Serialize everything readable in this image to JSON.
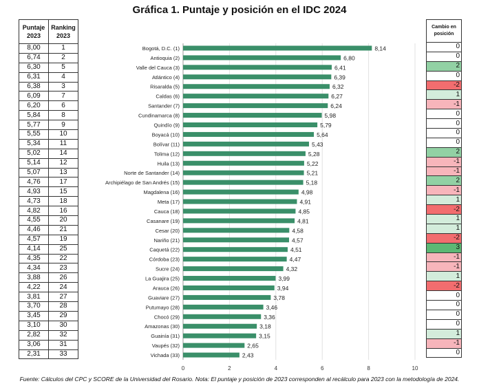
{
  "title": "Gráfica 1. Puntaje y posición en el IDC 2024",
  "left_table": {
    "headers": [
      "Puntaje 2023",
      "Ranking 2023"
    ],
    "puntaje": [
      "8,00",
      "6,74",
      "6,30",
      "6,31",
      "6,38",
      "6,09",
      "6,20",
      "5,84",
      "5,77",
      "5,55",
      "5,34",
      "5,02",
      "5,14",
      "5,07",
      "4,76",
      "4,93",
      "4,73",
      "4,82",
      "4,55",
      "4,46",
      "4,57",
      "4,14",
      "4,35",
      "4,34",
      "3,88",
      "4,22",
      "3,81",
      "3,70",
      "3,45",
      "3,10",
      "2,82",
      "3,06",
      "2,31"
    ],
    "ranking": [
      "1",
      "2",
      "5",
      "4",
      "3",
      "7",
      "6",
      "8",
      "9",
      "10",
      "11",
      "14",
      "12",
      "13",
      "17",
      "15",
      "18",
      "16",
      "20",
      "21",
      "19",
      "25",
      "22",
      "23",
      "26",
      "24",
      "27",
      "28",
      "29",
      "30",
      "32",
      "31",
      "33"
    ]
  },
  "right_table": {
    "header": "Cambio en posición",
    "values": [
      0,
      0,
      2,
      0,
      -2,
      1,
      -1,
      0,
      0,
      0,
      0,
      2,
      -1,
      -1,
      2,
      -1,
      1,
      -2,
      1,
      1,
      -2,
      3,
      -1,
      -1,
      1,
      -2,
      0,
      0,
      0,
      0,
      1,
      -1,
      0
    ],
    "colors": {
      "3": "#5cb874",
      "2": "#92d1a4",
      "1": "#d3ecdb",
      "0": "#ffffff",
      "-1": "#f7b5bb",
      "-2": "#f26d6f"
    }
  },
  "chart_data": {
    "type": "bar",
    "orientation": "horizontal",
    "title": "Gráfica 1. Puntaje y posición en el IDC 2024",
    "categories": [
      "Bogotá, D.C. (1)",
      "Antioquia (2)",
      "Valle del Cauca (3)",
      "Atlántico (4)",
      "Risaralda (5)",
      "Caldas (6)",
      "Santander (7)",
      "Cundinamarca (8)",
      "Quindío (9)",
      "Boyacá (10)",
      "Bolívar (11)",
      "Tolima (12)",
      "Huila (13)",
      "Norte de Santander (14)",
      "Archipiélago de San Andrés (15)",
      "Magdalena (16)",
      "Meta (17)",
      "Cauca (18)",
      "Casanare (19)",
      "Cesar (20)",
      "Nariño (21)",
      "Caquetá (22)",
      "Córdoba (23)",
      "Sucre (24)",
      "La Guajira (25)",
      "Arauca (26)",
      "Guaviare (27)",
      "Putumayo (28)",
      "Chocó (29)",
      "Amazonas (30)",
      "Guainía (31)",
      "Vaupés (32)",
      "Vichada (33)"
    ],
    "values": [
      8.14,
      6.8,
      6.41,
      6.39,
      6.32,
      6.27,
      6.24,
      5.98,
      5.79,
      5.64,
      5.43,
      5.28,
      5.22,
      5.21,
      5.18,
      4.98,
      4.91,
      4.85,
      4.81,
      4.58,
      4.57,
      4.51,
      4.47,
      4.32,
      3.99,
      3.94,
      3.78,
      3.46,
      3.36,
      3.18,
      3.15,
      2.65,
      2.43
    ],
    "xlim": [
      0,
      10
    ],
    "xticks": [
      "0",
      "2",
      "4",
      "6",
      "8",
      "10"
    ],
    "grid": true,
    "bar_color": "#3a8f69"
  },
  "footnote": "Fuente: Cálculos del CPC y SCORE de la Universidad del Rosario. Nota: El puntaje y posición de 2023 corresponden al recálculo para 2023 con la metodología de 2024."
}
